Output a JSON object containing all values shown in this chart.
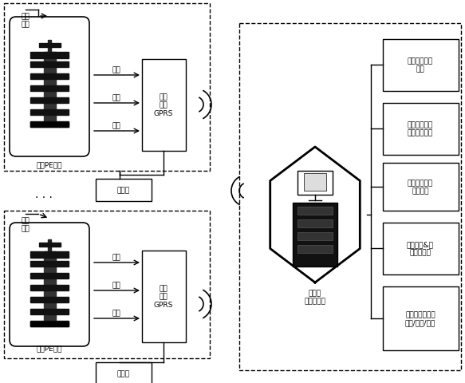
{
  "bg_color": "#ffffff",
  "line_color": "#000000",
  "valve_label1": "智能PE球阀",
  "valve_label2": "智能PE球阀",
  "ctrl_label": "控制\n指令",
  "gprs_label": "通讯\n模块\nGPRS",
  "flow_label": "流量计",
  "pressure_label": "压力",
  "temp_label": "温度",
  "flow_arrow_label": "流量",
  "server_label": "总控室\n网络服务器",
  "right_boxes": [
    "燃气管网拓扑\n结构",
    "燃气管网基础\n（工作）参数",
    "管网工作参数\n仿真模型",
    "管网泄漏&定\n位分析模型",
    "运行管理与人机\n交互/预警/控制"
  ],
  "font_family": "SimHei",
  "font_size": 6.5
}
